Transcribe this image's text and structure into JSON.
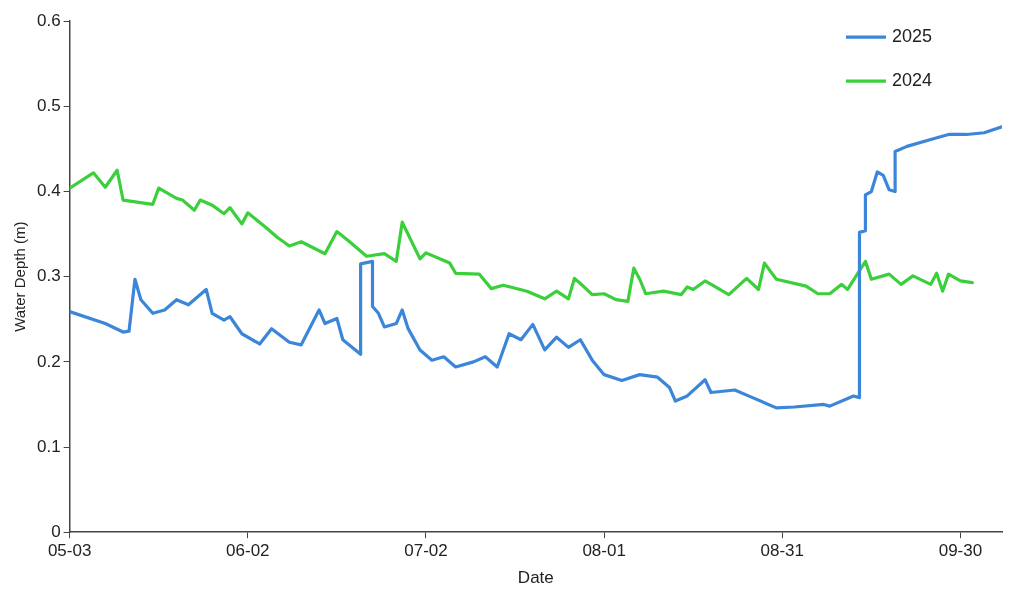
{
  "chart_data": {
    "type": "line",
    "xlabel": "Date",
    "ylabel": "Water Depth (m)",
    "xlim": [
      "--05-03",
      "--10-07"
    ],
    "xticks": [
      {
        "value": "--05-03",
        "label": "05-03"
      },
      {
        "value": "--06-02",
        "label": "06-02"
      },
      {
        "value": "--07-02",
        "label": "07-02"
      },
      {
        "value": "--08-01",
        "label": "08-01"
      },
      {
        "value": "--08-31",
        "label": "08-31"
      },
      {
        "value": "--09-30",
        "label": "09-30"
      }
    ],
    "ylim": [
      0,
      0.6
    ],
    "yticks": [
      0,
      0.1,
      0.2,
      0.3,
      0.4,
      0.5,
      0.6
    ],
    "grid": false,
    "legend": "top right",
    "marker": "none",
    "line_style": "solid",
    "series": [
      {
        "name": "2025",
        "color": "#3b86d9",
        "x": [
          "--05-03",
          "--05-09",
          "--05-12",
          "--05-13",
          "--05-14",
          "--05-15",
          "--05-17",
          "--05-19",
          "--05-21",
          "--05-23",
          "--05-26",
          "--05-27",
          "--05-29",
          "--05-30",
          "--06-01",
          "--06-04",
          "--06-06",
          "--06-09",
          "--06-11",
          "--06-14",
          "--06-15",
          "--06-17",
          "--06-18",
          "--06-21",
          "--06-21",
          "--06-23",
          "--06-23",
          "--06-24",
          "--06-25",
          "--06-27",
          "--06-28",
          "--06-29",
          "--07-01",
          "--07-03",
          "--07-05",
          "--07-07",
          "--07-10",
          "--07-12",
          "--07-14",
          "--07-16",
          "--07-18",
          "--07-20",
          "--07-22",
          "--07-24",
          "--07-26",
          "--07-28",
          "--07-30",
          "--08-01",
          "--08-04",
          "--08-07",
          "--08-10",
          "--08-12",
          "--08-13",
          "--08-15",
          "--08-18",
          "--08-19",
          "--08-23",
          "--08-26",
          "--08-30",
          "--09-02",
          "--09-07",
          "--09-08",
          "--09-12",
          "--09-13",
          "--09-13",
          "--09-14",
          "--09-14",
          "--09-15",
          "--09-16",
          "--09-17",
          "--09-18",
          "--09-19",
          "--09-19",
          "--09-21",
          "--09-25",
          "--09-28",
          "--10-01",
          "--10-04",
          "--10-07"
        ],
        "values": [
          0.259,
          0.245,
          0.235,
          0.236,
          0.297,
          0.273,
          0.257,
          0.261,
          0.273,
          0.267,
          0.285,
          0.257,
          0.249,
          0.253,
          0.233,
          0.221,
          0.239,
          0.223,
          0.22,
          0.261,
          0.245,
          0.251,
          0.226,
          0.209,
          0.315,
          0.318,
          0.265,
          0.257,
          0.241,
          0.245,
          0.261,
          0.239,
          0.214,
          0.202,
          0.206,
          0.194,
          0.2,
          0.206,
          0.194,
          0.233,
          0.226,
          0.244,
          0.214,
          0.229,
          0.217,
          0.226,
          0.202,
          0.185,
          0.178,
          0.185,
          0.182,
          0.17,
          0.154,
          0.16,
          0.179,
          0.164,
          0.167,
          0.158,
          0.146,
          0.147,
          0.15,
          0.148,
          0.16,
          0.158,
          0.352,
          0.354,
          0.396,
          0.4,
          0.423,
          0.419,
          0.402,
          0.4,
          0.447,
          0.453,
          0.461,
          0.467,
          0.467,
          0.469,
          0.476
        ]
      },
      {
        "name": "2024",
        "color": "#3ccf3c",
        "x": [
          "--05-03",
          "--05-07",
          "--05-09",
          "--05-11",
          "--05-12",
          "--05-17",
          "--05-18",
          "--05-21",
          "--05-22",
          "--05-24",
          "--05-25",
          "--05-27",
          "--05-29",
          "--05-30",
          "--06-01",
          "--06-02",
          "--06-05",
          "--06-07",
          "--06-09",
          "--06-11",
          "--06-15",
          "--06-17",
          "--06-19",
          "--06-22",
          "--06-25",
          "--06-27",
          "--06-28",
          "--07-01",
          "--07-02",
          "--07-06",
          "--07-07",
          "--07-11",
          "--07-13",
          "--07-15",
          "--07-19",
          "--07-22",
          "--07-24",
          "--07-26",
          "--07-27",
          "--07-28",
          "--07-30",
          "--08-01",
          "--08-03",
          "--08-05",
          "--08-06",
          "--08-07",
          "--08-08",
          "--08-11",
          "--08-14",
          "--08-15",
          "--08-16",
          "--08-18",
          "--08-22",
          "--08-25",
          "--08-27",
          "--08-28",
          "--08-30",
          "--09-04",
          "--09-06",
          "--09-08",
          "--09-10",
          "--09-11",
          "--09-14",
          "--09-15",
          "--09-18",
          "--09-20",
          "--09-22",
          "--09-25",
          "--09-26",
          "--09-27",
          "--09-28",
          "--09-30",
          "--10-02"
        ],
        "values": [
          0.404,
          0.422,
          0.405,
          0.425,
          0.39,
          0.385,
          0.404,
          0.392,
          0.39,
          0.378,
          0.39,
          0.384,
          0.374,
          0.381,
          0.362,
          0.375,
          0.358,
          0.346,
          0.336,
          0.341,
          0.327,
          0.353,
          0.342,
          0.324,
          0.327,
          0.318,
          0.364,
          0.321,
          0.328,
          0.316,
          0.304,
          0.303,
          0.286,
          0.29,
          0.283,
          0.274,
          0.283,
          0.274,
          0.298,
          0.292,
          0.279,
          0.28,
          0.273,
          0.271,
          0.31,
          0.297,
          0.28,
          0.283,
          0.279,
          0.288,
          0.285,
          0.295,
          0.279,
          0.298,
          0.285,
          0.316,
          0.297,
          0.289,
          0.28,
          0.28,
          0.291,
          0.285,
          0.318,
          0.297,
          0.303,
          0.291,
          0.301,
          0.291,
          0.304,
          0.283,
          0.303,
          0.295,
          0.293
        ]
      }
    ]
  }
}
